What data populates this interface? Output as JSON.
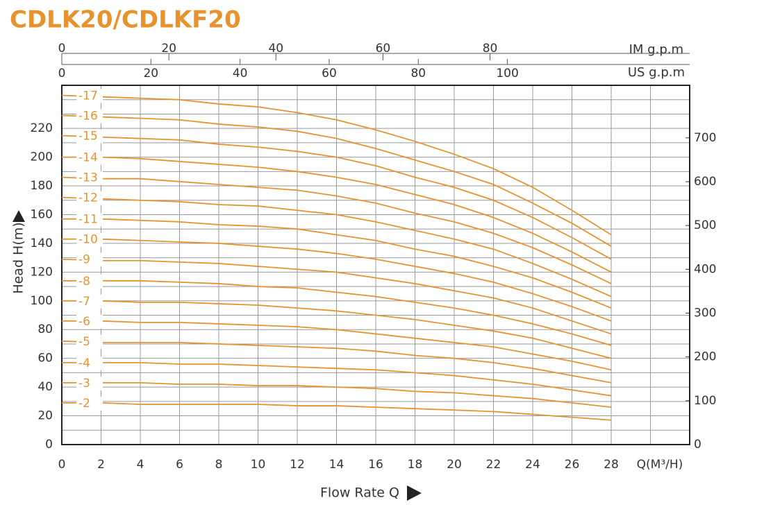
{
  "chart_data": {
    "type": "line",
    "title": "CDLK20/CDLKF20",
    "xlabel": "Q(M³/H)",
    "xlabel_bottom": "Flow Rate Q",
    "ylabel": "Head H(m)",
    "top_axis_im_label": "IM g.p.m",
    "top_axis_us_label": "US g.p.m",
    "x": [
      0,
      2,
      4,
      6,
      8,
      10,
      12,
      14,
      16,
      18,
      20,
      22,
      24,
      26,
      28
    ],
    "xlim": [
      0,
      32
    ],
    "xticks": [
      0,
      2,
      4,
      6,
      8,
      10,
      12,
      14,
      16,
      18,
      20,
      22,
      24,
      26,
      28
    ],
    "x_minor_ticks": [
      30
    ],
    "ylim": [
      0,
      250
    ],
    "yticks": [
      0,
      20,
      40,
      60,
      80,
      100,
      120,
      140,
      160,
      180,
      200,
      220
    ],
    "y_minor_ticks": [
      10,
      30,
      50,
      70,
      90,
      110,
      130,
      150,
      170,
      190,
      210,
      230,
      240
    ],
    "y2lim": [
      0,
      820
    ],
    "y2ticks": [
      0,
      100,
      200,
      300,
      400,
      500,
      600,
      700
    ],
    "im_xlim": [
      0,
      117.3
    ],
    "im_ticks": [
      0,
      20,
      40,
      60,
      80
    ],
    "us_xlim": [
      0,
      140.9
    ],
    "us_ticks": [
      0,
      20,
      40,
      60,
      80,
      100
    ],
    "grid": true,
    "series": [
      {
        "name": "-2",
        "color": "#e8922e",
        "values": [
          29,
          29,
          28,
          28,
          28,
          28,
          27,
          27,
          26,
          25,
          24,
          23,
          21,
          19,
          17
        ]
      },
      {
        "name": "-3",
        "color": "#e8922e",
        "values": [
          43,
          43,
          43,
          42,
          42,
          41,
          41,
          40,
          39,
          37,
          36,
          34,
          32,
          29,
          26
        ]
      },
      {
        "name": "-4",
        "color": "#e8922e",
        "values": [
          57,
          57,
          57,
          56,
          56,
          55,
          54,
          53,
          52,
          50,
          48,
          45,
          42,
          38,
          34
        ]
      },
      {
        "name": "-5",
        "color": "#e8922e",
        "values": [
          72,
          71,
          71,
          71,
          70,
          69,
          68,
          67,
          65,
          62,
          60,
          57,
          53,
          48,
          43
        ]
      },
      {
        "name": "-6",
        "color": "#e8922e",
        "values": [
          86,
          86,
          85,
          85,
          84,
          83,
          82,
          80,
          77,
          74,
          71,
          68,
          63,
          58,
          52
        ]
      },
      {
        "name": "-7",
        "color": "#e8922e",
        "values": [
          100,
          100,
          99,
          99,
          98,
          97,
          95,
          93,
          90,
          87,
          83,
          79,
          74,
          67,
          60
        ]
      },
      {
        "name": "-8",
        "color": "#e8922e",
        "values": [
          114,
          114,
          114,
          113,
          112,
          110,
          109,
          106,
          103,
          99,
          95,
          90,
          84,
          77,
          69
        ]
      },
      {
        "name": "-9",
        "color": "#e8922e",
        "values": [
          129,
          128,
          128,
          127,
          126,
          124,
          122,
          120,
          116,
          112,
          107,
          102,
          95,
          86,
          77
        ]
      },
      {
        "name": "-10",
        "color": "#e8922e",
        "values": [
          143,
          143,
          142,
          141,
          140,
          138,
          136,
          133,
          129,
          124,
          119,
          113,
          105,
          96,
          86
        ]
      },
      {
        "name": "-11",
        "color": "#e8922e",
        "values": [
          157,
          157,
          156,
          155,
          153,
          152,
          150,
          146,
          142,
          136,
          131,
          124,
          116,
          106,
          95
        ]
      },
      {
        "name": "-12",
        "color": "#e8922e",
        "values": [
          172,
          171,
          170,
          169,
          167,
          166,
          163,
          160,
          155,
          149,
          143,
          136,
          126,
          115,
          103
        ]
      },
      {
        "name": "-13",
        "color": "#e8922e",
        "values": [
          186,
          185,
          185,
          183,
          181,
          179,
          177,
          173,
          168,
          161,
          155,
          147,
          137,
          125,
          112
        ]
      },
      {
        "name": "-14",
        "color": "#e8922e",
        "values": [
          200,
          200,
          199,
          197,
          195,
          193,
          190,
          186,
          181,
          174,
          167,
          158,
          147,
          134,
          120
        ]
      },
      {
        "name": "-15",
        "color": "#e8922e",
        "values": [
          215,
          214,
          213,
          212,
          209,
          207,
          204,
          200,
          194,
          186,
          179,
          170,
          158,
          144,
          129
        ]
      },
      {
        "name": "-16",
        "color": "#e8922e",
        "values": [
          229,
          228,
          227,
          226,
          223,
          221,
          218,
          213,
          206,
          198,
          190,
          181,
          168,
          154,
          138
        ]
      },
      {
        "name": "-17",
        "color": "#e8922e",
        "values": [
          243,
          242,
          241,
          240,
          237,
          235,
          231,
          226,
          219,
          211,
          202,
          192,
          179,
          163,
          146
        ]
      }
    ]
  }
}
